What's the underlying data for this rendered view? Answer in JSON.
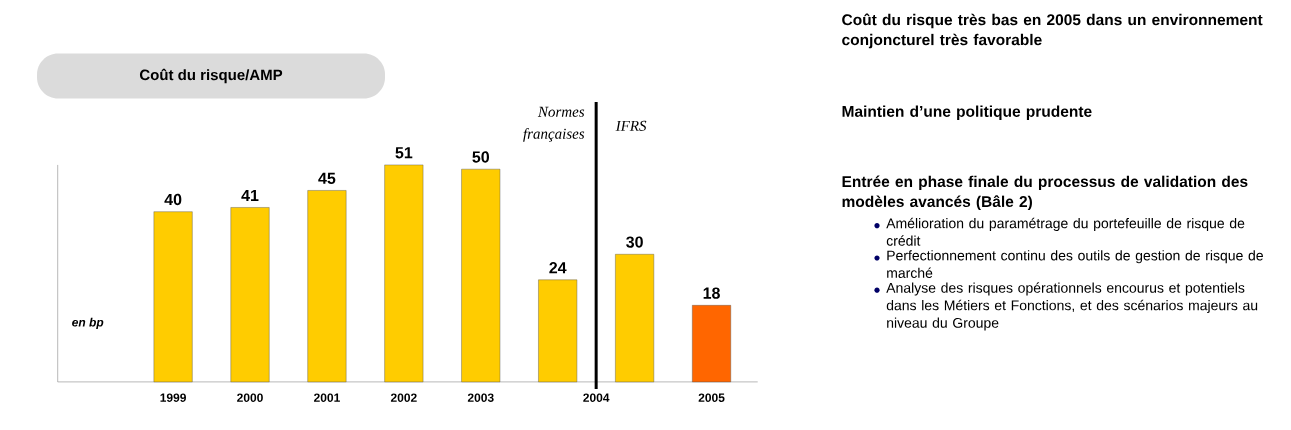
{
  "chart_data": [
    {
      "type": "bar",
      "title": "Coût du risque/AMP",
      "ylabel": "en bp",
      "categories": [
        "1999",
        "2000",
        "2001",
        "2002",
        "2003",
        "2004",
        null,
        "2005"
      ],
      "values": [
        40,
        41,
        45,
        51,
        50,
        24,
        30,
        18
      ],
      "colors": [
        "#ffcc00",
        "#ffcc00",
        "#ffcc00",
        "#ffcc00",
        "#ffcc00",
        "#ffcc00",
        "#ffcc00",
        "#ff6600"
      ],
      "data_labels": true,
      "ref_lines": [
        {
          "axis": "x",
          "value": "2004",
          "label": "IFRS",
          "color": "#000000"
        }
      ],
      "annotations": [
        {
          "text": "Normes françaises",
          "x": "2004"
        }
      ]
    },
    {
      "type": "other",
      "title": "Coût du risque très bas en 2005 dans un environnement conjoncturel très favorable"
    },
    {
      "type": "other",
      "title": "Maintien d’une politique prudente"
    },
    {
      "type": "other",
      "title": "Entrée en phase finale du processus de validation des modèles avancés (Bâle 2)",
      "annotations": [
        "Amélioration du paramétrage du portefeuille de risque de crédit",
        "Perfectionnement continu des outils de gestion de risque de marché",
        "Analyse des risques opérationnels encourus et potentiels dans les Métiers et Fonctions, et des scénarios majeurs au niveau du Groupe"
      ]
    }
  ]
}
